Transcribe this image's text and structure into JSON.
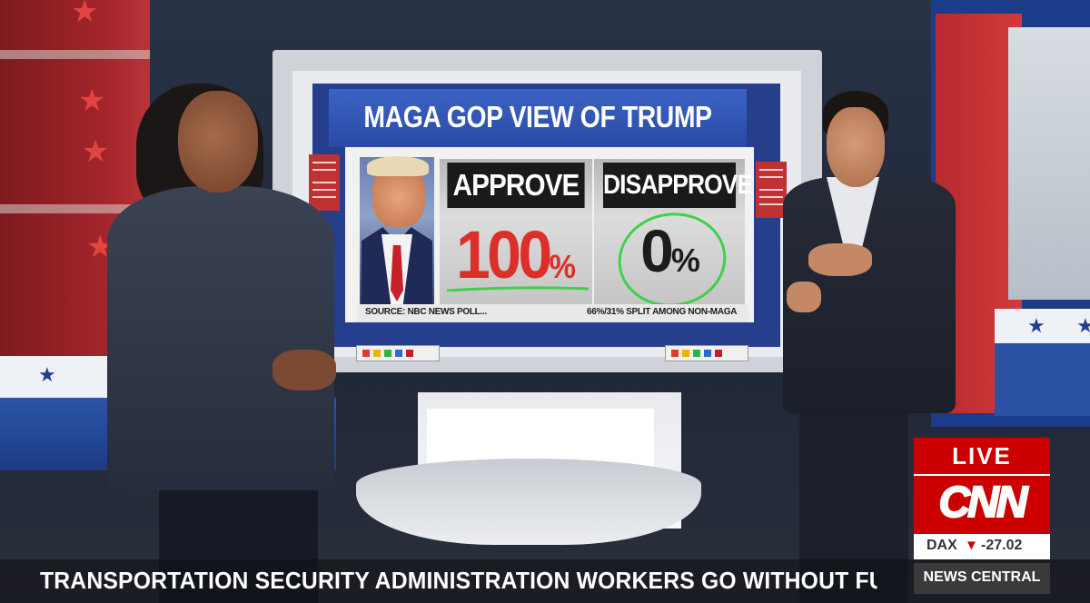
{
  "screen": {
    "title": "MAGA GOP VIEW OF TRUMP",
    "approve_label": "APPROVE",
    "disapprove_label": "DISAPPROVE",
    "approve_value": "100",
    "disapprove_value": "0",
    "percent_sign": "%",
    "source": "SOURCE: NBC NEWS POLL...",
    "split_note": "66%/31% SPLIT AMONG NON-MAGA"
  },
  "overlay": {
    "live_label": "LIVE",
    "network_logo": "CNN",
    "market_label": "DAX",
    "market_arrow": "▼",
    "market_value": "-27.02",
    "ticker": "TRANSPORTATION SECURITY ADMINISTRATION WORKERS GO WITHOUT FULL PAY D",
    "show_name": "NEWS CENTRAL"
  },
  "colors": {
    "cnn_red": "#cc0000",
    "approve_red": "#dd2f2a",
    "highlight_green": "#3fd14a",
    "studio_blue": "#253f8c"
  }
}
